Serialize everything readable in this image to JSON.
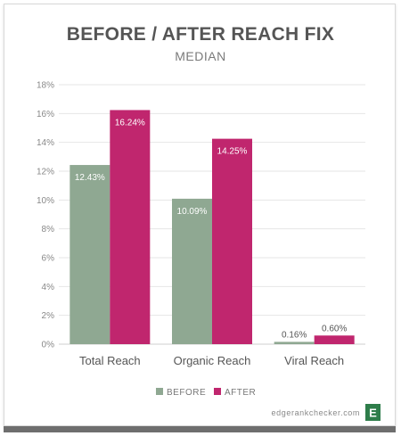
{
  "chart_data": {
    "type": "bar",
    "title": "BEFORE / AFTER REACH FIX",
    "subtitle": "MEDIAN",
    "categories": [
      "Total Reach",
      "Organic Reach",
      "Viral Reach"
    ],
    "series": [
      {
        "name": "BEFORE",
        "color": "#8fa892",
        "values": [
          12.43,
          10.09,
          0.16
        ],
        "labels": [
          "12.43%",
          "10.09%",
          "0.16%"
        ]
      },
      {
        "name": "AFTER",
        "color": "#c0266e",
        "values": [
          16.24,
          14.25,
          0.6
        ],
        "labels": [
          "16.24%",
          "14.25%",
          "0.60%"
        ]
      }
    ],
    "ylim": [
      0,
      18
    ],
    "yticks": [
      "0%",
      "2%",
      "4%",
      "6%",
      "8%",
      "10%",
      "12%",
      "14%",
      "16%",
      "18%"
    ],
    "grid": true,
    "legend_position": "bottom-center"
  },
  "footer": {
    "site": "edgerankchecker.com",
    "logo_letter": "E",
    "logo_color": "#2e7d4a"
  }
}
